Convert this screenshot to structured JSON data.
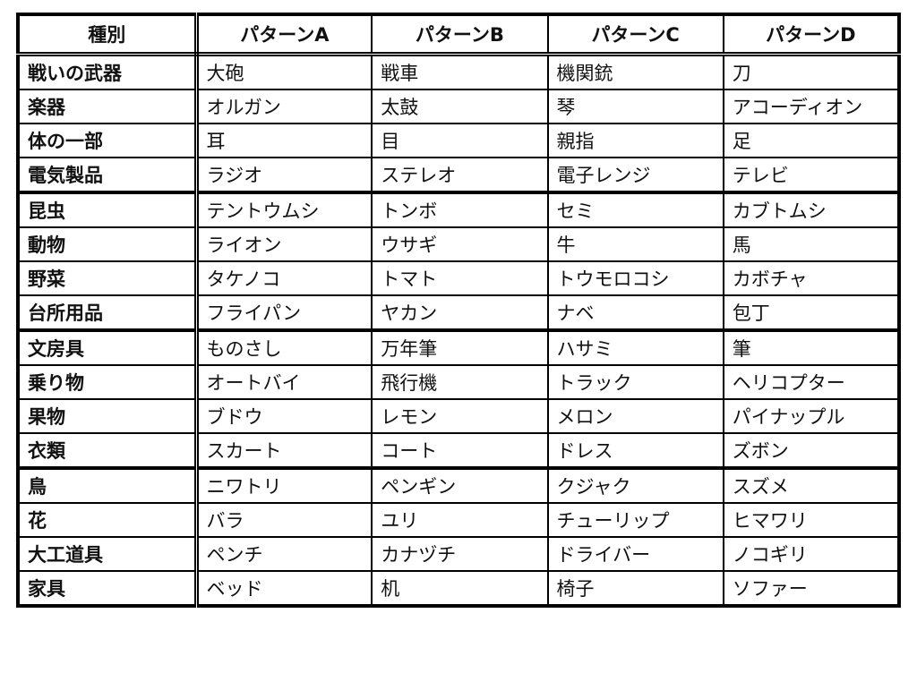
{
  "headers": [
    "種別",
    "パターンA",
    "パターンB",
    "パターンC",
    "パターンD"
  ],
  "groups": [
    [
      [
        "戦いの武器",
        "大砲",
        "戦車",
        "機関銃",
        "刀"
      ],
      [
        "楽器",
        "オルガン",
        "太鼓",
        "琴",
        "アコーディオン"
      ],
      [
        "体の一部",
        "耳",
        "目",
        "親指",
        "足"
      ],
      [
        "電気製品",
        "ラジオ",
        "ステレオ",
        "電子レンジ",
        "テレビ"
      ]
    ],
    [
      [
        "昆虫",
        "テントウムシ",
        "トンボ",
        "セミ",
        "カブトムシ"
      ],
      [
        "動物",
        "ライオン",
        "ウサギ",
        "牛",
        "馬"
      ],
      [
        "野菜",
        "タケノコ",
        "トマト",
        "トウモロコシ",
        "カボチャ"
      ],
      [
        "台所用品",
        "フライパン",
        "ヤカン",
        "ナベ",
        "包丁"
      ]
    ],
    [
      [
        "文房具",
        "ものさし",
        "万年筆",
        "ハサミ",
        "筆"
      ],
      [
        "乗り物",
        "オートバイ",
        "飛行機",
        "トラック",
        "ヘリコプター"
      ],
      [
        "果物",
        "ブドウ",
        "レモン",
        "メロン",
        "パイナップル"
      ],
      [
        "衣類",
        "スカート",
        "コート",
        "ドレス",
        "ズボン"
      ]
    ],
    [
      [
        "鳥",
        "ニワトリ",
        "ペンギン",
        "クジャク",
        "スズメ"
      ],
      [
        "花",
        "バラ",
        "ユリ",
        "チューリップ",
        "ヒマワリ"
      ],
      [
        "大工道具",
        "ペンチ",
        "カナヅチ",
        "ドライバー",
        "ノコギリ"
      ],
      [
        "家具",
        "ベッド",
        "机",
        "椅子",
        "ソファー"
      ]
    ]
  ]
}
